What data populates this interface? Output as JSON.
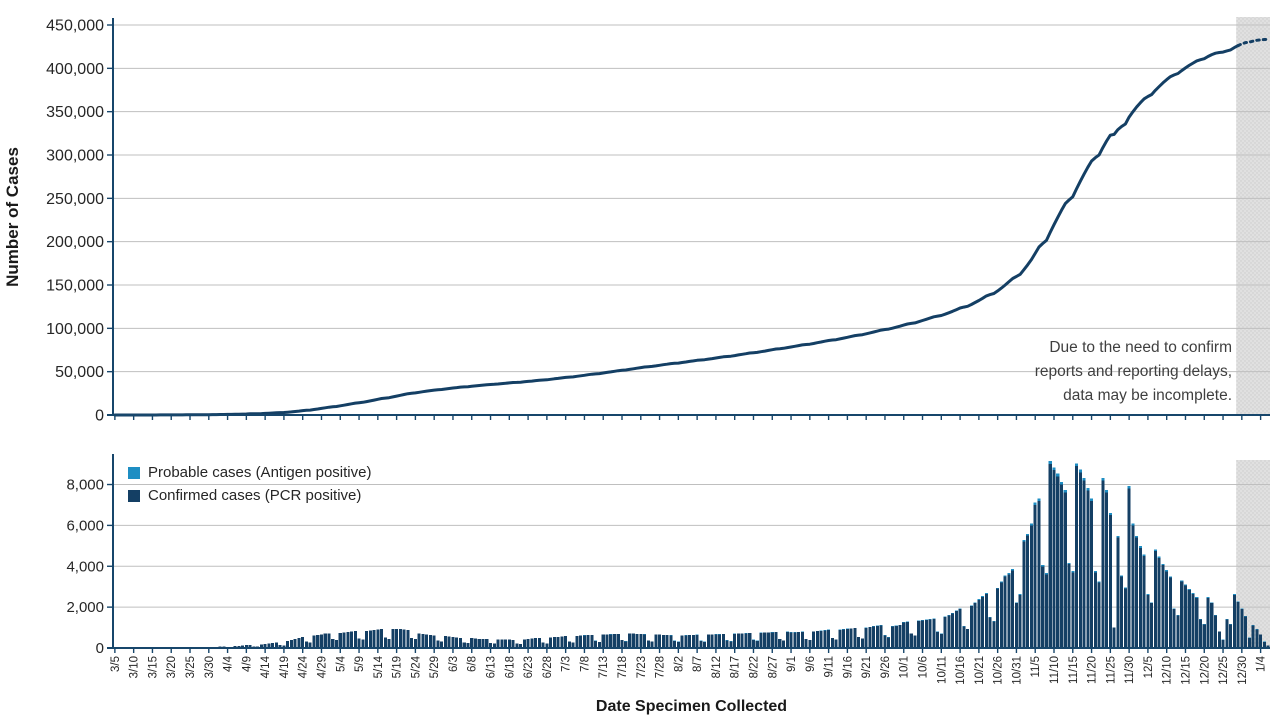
{
  "top_chart": {
    "y_axis_label": "Number of Cases",
    "y_ticks": [
      {
        "value": 450000,
        "label": "450,000"
      },
      {
        "value": 400000,
        "label": "400,000"
      },
      {
        "value": 350000,
        "label": "350,000"
      },
      {
        "value": 300000,
        "label": "300,000"
      },
      {
        "value": 250000,
        "label": "250,000"
      },
      {
        "value": 200000,
        "label": "200,000"
      },
      {
        "value": 150000,
        "label": "150,000"
      },
      {
        "value": 100000,
        "label": "100,000"
      },
      {
        "value": 50000,
        "label": "50,000"
      },
      {
        "value": 0,
        "label": "0"
      }
    ],
    "annotation": {
      "line1": "Due to the need to confirm",
      "line2": "reports and reporting delays,",
      "line3": "data may be incomplete."
    },
    "ylim": [
      0,
      450000
    ]
  },
  "bottom_chart": {
    "x_axis_label": "Date Specimen Collected",
    "y_ticks": [
      {
        "value": 8000,
        "label": "8,000"
      },
      {
        "value": 6000,
        "label": "6,000"
      },
      {
        "value": 4000,
        "label": "4,000"
      },
      {
        "value": 2000,
        "label": "2,000"
      },
      {
        "value": 0,
        "label": "0"
      }
    ],
    "legend": [
      {
        "label": "Probable cases (Antigen positive)",
        "color": "#1E8EC3"
      },
      {
        "label": "Confirmed cases (PCR positive)",
        "color": "#143F64"
      }
    ],
    "ylim": [
      0,
      9200
    ]
  },
  "colors": {
    "navy": "#143F64",
    "light_blue": "#1E8EC3",
    "axis": "#17466B",
    "gridline": "#BFBFBF",
    "shaded_band": "#E0E0E0",
    "shaded_dot": "#CBCBCB",
    "tick_text": "#262626"
  },
  "chart_data": {
    "type": "bar",
    "stacked": true,
    "x_tick_label_every_n_days": 5,
    "x_tick_labels": [
      "3/5",
      "3/10",
      "3/15",
      "3/20",
      "3/25",
      "3/30",
      "4/4",
      "4/9",
      "4/14",
      "4/19",
      "4/24",
      "4/29",
      "5/4",
      "5/9",
      "5/14",
      "5/19",
      "5/24",
      "5/29",
      "6/3",
      "6/8",
      "6/13",
      "6/18",
      "6/23",
      "6/28",
      "7/3",
      "7/8",
      "7/13",
      "7/18",
      "7/23",
      "7/28",
      "8/2",
      "8/7",
      "8/12",
      "8/17",
      "8/22",
      "8/27",
      "9/1",
      "9/6",
      "9/11",
      "9/16",
      "9/21",
      "9/26",
      "10/1",
      "10/6",
      "10/11",
      "10/16",
      "10/21",
      "10/26",
      "10/31",
      "11/5",
      "11/10",
      "11/15",
      "11/20",
      "11/25",
      "11/30",
      "12/5",
      "12/10",
      "12/15",
      "12/20",
      "12/25",
      "12/30",
      "1/4"
    ],
    "incomplete_start_day_index": 299,
    "cumulative_line": {
      "title": "Cumulative number of cases (running sum of daily probable + confirmed)",
      "ylim": [
        0,
        450000
      ],
      "approx_final_total": 433000,
      "style_after_incomplete_index": "dotted"
    },
    "series": [
      {
        "name": "Confirmed cases (PCR positive)",
        "values": [
          2,
          3,
          1,
          1,
          4,
          5,
          6,
          7,
          8,
          4,
          3,
          10,
          12,
          14,
          16,
          18,
          10,
          8,
          22,
          26,
          30,
          34,
          38,
          20,
          16,
          45,
          52,
          60,
          70,
          80,
          45,
          38,
          95,
          110,
          125,
          140,
          155,
          85,
          70,
          175,
          195,
          215,
          240,
          265,
          150,
          125,
          350,
          400,
          450,
          500,
          550,
          320,
          270,
          600,
          640,
          670,
          700,
          720,
          430,
          380,
          740,
          760,
          780,
          800,
          820,
          470,
          410,
          840,
          860,
          880,
          900,
          920,
          520,
          450,
          930,
          940,
          920,
          900,
          880,
          500,
          430,
          700,
          680,
          660,
          640,
          620,
          360,
          310,
          580,
          560,
          540,
          520,
          500,
          280,
          240,
          480,
          460,
          450,
          440,
          430,
          240,
          210,
          420,
          420,
          410,
          410,
          400,
          220,
          190,
          420,
          440,
          460,
          480,
          500,
          270,
          230,
          520,
          540,
          540,
          560,
          580,
          320,
          270,
          590,
          610,
          620,
          630,
          640,
          350,
          300,
          650,
          660,
          670,
          680,
          690,
          380,
          330,
          700,
          700,
          690,
          680,
          670,
          370,
          320,
          660,
          650,
          640,
          630,
          620,
          350,
          300,
          610,
          620,
          630,
          630,
          640,
          350,
          300,
          650,
          660,
          670,
          670,
          680,
          370,
          330,
          690,
          700,
          710,
          720,
          730,
          400,
          350,
          740,
          750,
          760,
          770,
          780,
          430,
          360,
          790,
          760,
          770,
          780,
          790,
          430,
          380,
          800,
          820,
          840,
          860,
          880,
          480,
          410,
          890,
          910,
          930,
          950,
          970,
          530,
          460,
          990,
          1020,
          1050,
          1080,
          1110,
          610,
          520,
          1050,
          1080,
          1120,
          1250,
          1280,
          700,
          610,
          1320,
          1350,
          1380,
          1400,
          1430,
          790,
          690,
          1520,
          1600,
          1700,
          1800,
          1900,
          1060,
          920,
          2050,
          2200,
          2350,
          2500,
          2650,
          1500,
          1300,
          2900,
          3200,
          3500,
          3600,
          3800,
          2200,
          2600,
          5200,
          5500,
          6000,
          7000,
          7200,
          4000,
          3600,
          9000,
          8700,
          8400,
          8000,
          7600,
          4100,
          3700,
          8900,
          8600,
          8200,
          7700,
          7200,
          3700,
          3200,
          8200,
          7600,
          6500,
          1000,
          5400,
          3500,
          2900,
          7800,
          6000,
          5400,
          4900,
          4500,
          2600,
          2200,
          4750,
          4400,
          4050,
          3750,
          3450,
          1900,
          1600,
          3250,
          3050,
          2850,
          2650,
          2450,
          1400,
          1150,
          2450,
          2200,
          1600,
          800,
          400,
          1400,
          1150,
          2600,
          2250,
          1900,
          1550,
          500,
          1100,
          900,
          650,
          300,
          120
        ]
      },
      {
        "name": "Probable cases (Antigen positive)",
        "values": [
          0,
          0,
          0,
          0,
          0,
          0,
          0,
          0,
          0,
          0,
          0,
          0,
          0,
          0,
          0,
          0,
          0,
          0,
          0,
          0,
          0,
          0,
          0,
          0,
          0,
          0,
          0,
          0,
          0,
          0,
          0,
          0,
          0,
          0,
          0,
          0,
          0,
          0,
          0,
          0,
          0,
          0,
          0,
          0,
          0,
          0,
          0,
          0,
          0,
          0,
          0,
          0,
          0,
          0,
          0,
          0,
          0,
          0,
          0,
          0,
          0,
          0,
          0,
          0,
          0,
          0,
          0,
          0,
          0,
          0,
          0,
          0,
          0,
          0,
          0,
          0,
          0,
          0,
          0,
          0,
          0,
          0,
          0,
          0,
          0,
          0,
          0,
          0,
          0,
          0,
          0,
          0,
          0,
          0,
          0,
          0,
          0,
          0,
          0,
          0,
          0,
          0,
          0,
          0,
          0,
          0,
          0,
          0,
          0,
          0,
          0,
          0,
          0,
          0,
          0,
          0,
          0,
          0,
          5,
          5,
          5,
          5,
          5,
          5,
          5,
          5,
          5,
          5,
          5,
          5,
          5,
          5,
          5,
          5,
          5,
          5,
          5,
          5,
          5,
          5,
          5,
          5,
          5,
          5,
          5,
          5,
          5,
          5,
          5,
          10,
          10,
          10,
          10,
          10,
          10,
          10,
          10,
          10,
          10,
          10,
          10,
          10,
          10,
          10,
          10,
          10,
          10,
          10,
          10,
          10,
          10,
          10,
          10,
          10,
          10,
          10,
          10,
          10,
          10,
          10,
          15,
          15,
          15,
          15,
          15,
          15,
          15,
          15,
          15,
          15,
          15,
          15,
          15,
          15,
          15,
          15,
          15,
          15,
          15,
          15,
          15,
          15,
          15,
          15,
          15,
          15,
          15,
          15,
          15,
          15,
          15,
          15,
          8,
          8,
          18,
          18,
          20,
          20,
          20,
          10,
          10,
          23,
          25,
          25,
          28,
          30,
          15,
          13,
          33,
          35,
          38,
          40,
          43,
          23,
          20,
          48,
          53,
          58,
          60,
          65,
          35,
          40,
          90,
          90,
          100,
          120,
          120,
          70,
          60,
          150,
          140,
          140,
          130,
          120,
          70,
          70,
          140,
          140,
          130,
          120,
          120,
          70,
          60,
          130,
          120,
          110,
          15,
          90,
          60,
          50,
          130,
          100,
          90,
          80,
          75,
          40,
          35,
          75,
          70,
          65,
          60,
          55,
          30,
          25,
          50,
          50,
          45,
          43,
          40,
          23,
          18,
          40,
          35,
          25,
          13,
          8,
          23,
          18,
          43,
          35,
          30,
          25,
          15,
          35,
          30,
          20,
          10,
          5
        ]
      }
    ]
  }
}
